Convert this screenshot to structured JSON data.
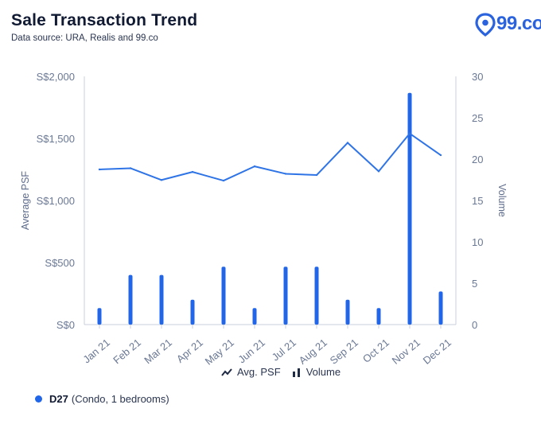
{
  "header": {
    "title": "Sale Transaction Trend",
    "subtitle": "Data source: URA, Realis and 99.co",
    "logo_text": "99.co"
  },
  "colors": {
    "accent": "#2166e8",
    "line": "#2f74e6",
    "tick": "#6a7894"
  },
  "chart_data": {
    "type": "bar",
    "categories": [
      "Jan 21",
      "Feb 21",
      "Mar 21",
      "Apr 21",
      "May 21",
      "Jun 21",
      "Jul 21",
      "Aug 21",
      "Sep 21",
      "Oct 21",
      "Nov 21",
      "Dec 21"
    ],
    "series": [
      {
        "name": "Avg. PSF",
        "type": "line",
        "axis": "left",
        "values": [
          1250,
          1260,
          1165,
          1230,
          1160,
          1275,
          1215,
          1205,
          1465,
          1235,
          1540,
          1365
        ]
      },
      {
        "name": "Volume",
        "type": "bar",
        "axis": "right",
        "values": [
          2,
          6,
          6,
          3,
          7,
          2,
          7,
          7,
          3,
          2,
          28,
          4
        ]
      }
    ],
    "ylabel": "Average PSF",
    "y2label": "Volume",
    "ylim": [
      0,
      2000
    ],
    "y2lim": [
      0,
      30
    ],
    "yticks": [
      "S$0",
      "S$500",
      "S$1,000",
      "S$1,500",
      "S$2,000"
    ],
    "y2ticks": [
      "0",
      "5",
      "10",
      "15",
      "20",
      "25",
      "30"
    ],
    "grid": false,
    "legend": "bottom-center"
  },
  "legend": {
    "line_label": "Avg. PSF",
    "bar_label": "Volume"
  },
  "footer": {
    "series_code": "D27",
    "series_desc": "(Condo, 1 bedrooms)"
  }
}
